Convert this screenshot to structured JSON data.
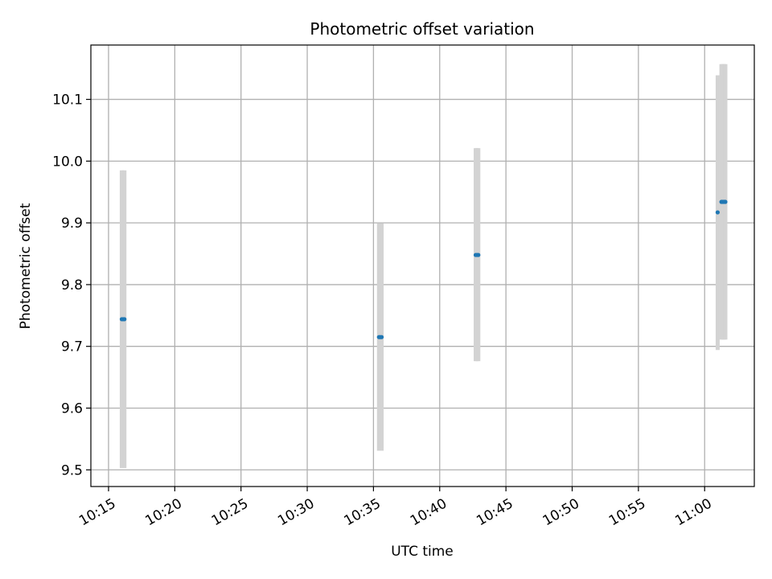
{
  "chart_data": {
    "type": "scatter",
    "title": "Photometric offset variation",
    "xlabel": "UTC time",
    "ylabel": "Photometric offset",
    "x_unit": "time of day (hours:minutes, UTC)",
    "xlim": [
      "10:13:40",
      "11:03:45"
    ],
    "ylim": [
      9.473,
      10.188
    ],
    "x_ticks": [
      "10:15",
      "10:20",
      "10:25",
      "10:30",
      "10:35",
      "10:40",
      "10:45",
      "10:50",
      "10:55",
      "11:00"
    ],
    "y_ticks": [
      9.5,
      9.6,
      9.7,
      9.8,
      9.9,
      10.0,
      10.1
    ],
    "y_tick_labels": [
      "9.5",
      "9.6",
      "9.7",
      "9.8",
      "9.9",
      "10.0",
      "10.1"
    ],
    "grid": true,
    "colors": {
      "points": "#1f77b4",
      "errorbars": "#d3d3d3"
    },
    "points": [
      {
        "time": "10:16:00",
        "value": 9.744,
        "err_low": 9.503,
        "err_high": 9.985
      },
      {
        "time": "10:16:06",
        "value": 9.744,
        "err_low": 9.503,
        "err_high": 9.985
      },
      {
        "time": "10:16:12",
        "value": 9.744,
        "err_low": 9.503,
        "err_high": 9.985
      },
      {
        "time": "10:35:25",
        "value": 9.715,
        "err_low": 9.531,
        "err_high": 9.899
      },
      {
        "time": "10:35:31",
        "value": 9.715,
        "err_low": 9.531,
        "err_high": 9.899
      },
      {
        "time": "10:35:37",
        "value": 9.715,
        "err_low": 9.531,
        "err_high": 9.899
      },
      {
        "time": "10:42:43",
        "value": 9.848,
        "err_low": 9.676,
        "err_high": 10.021
      },
      {
        "time": "10:42:49",
        "value": 9.848,
        "err_low": 9.676,
        "err_high": 10.021
      },
      {
        "time": "10:42:55",
        "value": 9.848,
        "err_low": 9.676,
        "err_high": 10.021
      },
      {
        "time": "11:00:59",
        "value": 9.917,
        "err_low": 9.694,
        "err_high": 10.139
      },
      {
        "time": "11:01:16",
        "value": 9.934,
        "err_low": 9.711,
        "err_high": 10.157
      },
      {
        "time": "11:01:22",
        "value": 9.934,
        "err_low": 9.711,
        "err_high": 10.157
      },
      {
        "time": "11:01:28",
        "value": 9.934,
        "err_low": 9.711,
        "err_high": 10.157
      },
      {
        "time": "11:01:34",
        "value": 9.934,
        "err_low": 9.711,
        "err_high": 10.157
      }
    ]
  }
}
